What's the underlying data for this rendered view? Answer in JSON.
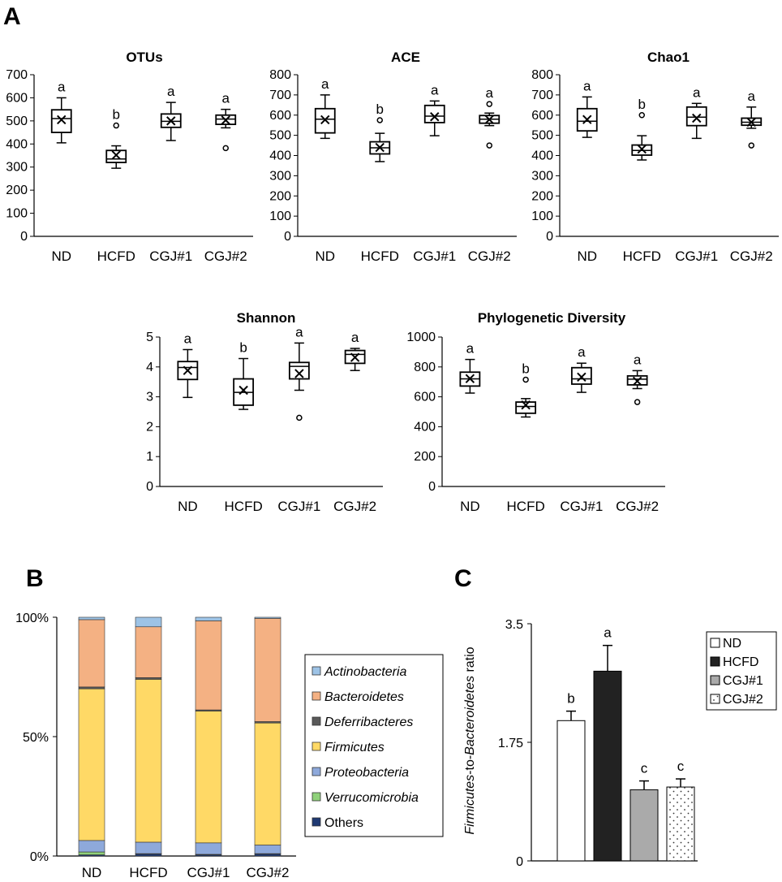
{
  "panel_labels": {
    "A": "A",
    "B": "B",
    "C": "C"
  },
  "chart_data": [
    {
      "id": "otus",
      "type": "box",
      "panel": "A",
      "title": "OTUs",
      "categories": [
        "ND",
        "HCFD",
        "CGJ#1",
        "CGJ#2"
      ],
      "ylim": [
        0,
        700
      ],
      "yticks": [
        0,
        100,
        200,
        300,
        400,
        500,
        600,
        700
      ],
      "boxes": [
        {
          "min": 405,
          "q1": 450,
          "median": 510,
          "q3": 548,
          "max": 600,
          "mean": 505,
          "outliers": [],
          "label": "a"
        },
        {
          "min": 295,
          "q1": 320,
          "median": 335,
          "q3": 372,
          "max": 392,
          "mean": 352,
          "outliers": [
            480
          ],
          "label": "b"
        },
        {
          "min": 415,
          "q1": 472,
          "median": 498,
          "q3": 530,
          "max": 580,
          "mean": 500,
          "outliers": [],
          "label": "a"
        },
        {
          "min": 470,
          "q1": 485,
          "median": 508,
          "q3": 525,
          "max": 550,
          "mean": 503,
          "outliers": [
            382
          ],
          "label": "a"
        }
      ]
    },
    {
      "id": "ace",
      "type": "box",
      "panel": "A",
      "title": "ACE",
      "categories": [
        "ND",
        "HCFD",
        "CGJ#1",
        "CGJ#2"
      ],
      "ylim": [
        0,
        800
      ],
      "yticks": [
        0,
        100,
        200,
        300,
        400,
        500,
        600,
        700,
        800
      ],
      "boxes": [
        {
          "min": 485,
          "q1": 512,
          "median": 580,
          "q3": 632,
          "max": 700,
          "mean": 577,
          "outliers": [],
          "label": "a"
        },
        {
          "min": 370,
          "q1": 408,
          "median": 438,
          "q3": 468,
          "max": 510,
          "mean": 440,
          "outliers": [
            575
          ],
          "label": "b"
        },
        {
          "min": 498,
          "q1": 563,
          "median": 595,
          "q3": 648,
          "max": 670,
          "mean": 592,
          "outliers": [],
          "label": "a"
        },
        {
          "min": 548,
          "q1": 560,
          "median": 580,
          "q3": 598,
          "max": 610,
          "mean": 578,
          "outliers": [
            655,
            450
          ],
          "label": "a"
        }
      ]
    },
    {
      "id": "chao1",
      "type": "box",
      "panel": "A",
      "title": "Chao1",
      "categories": [
        "ND",
        "HCFD",
        "CGJ#1",
        "CGJ#2"
      ],
      "ylim": [
        0,
        800
      ],
      "yticks": [
        0,
        100,
        200,
        300,
        400,
        500,
        600,
        700,
        800
      ],
      "boxes": [
        {
          "min": 490,
          "q1": 522,
          "median": 570,
          "q3": 632,
          "max": 690,
          "mean": 578,
          "outliers": [],
          "label": "a"
        },
        {
          "min": 378,
          "q1": 402,
          "median": 425,
          "q3": 452,
          "max": 498,
          "mean": 432,
          "outliers": [
            600
          ],
          "label": "b"
        },
        {
          "min": 485,
          "q1": 548,
          "median": 590,
          "q3": 640,
          "max": 658,
          "mean": 585,
          "outliers": [],
          "label": "a"
        },
        {
          "min": 535,
          "q1": 550,
          "median": 565,
          "q3": 585,
          "max": 640,
          "mean": 565,
          "outliers": [
            450
          ],
          "label": "a"
        }
      ]
    },
    {
      "id": "shannon",
      "type": "box",
      "panel": "A",
      "title": "Shannon",
      "categories": [
        "ND",
        "HCFD",
        "CGJ#1",
        "CGJ#2"
      ],
      "ylim": [
        0,
        5
      ],
      "yticks": [
        0,
        1,
        2,
        3,
        4,
        5
      ],
      "boxes": [
        {
          "min": 2.98,
          "q1": 3.58,
          "median": 3.98,
          "q3": 4.18,
          "max": 4.58,
          "mean": 3.88,
          "outliers": [],
          "label": "a"
        },
        {
          "min": 2.58,
          "q1": 2.72,
          "median": 3.15,
          "q3": 3.6,
          "max": 4.28,
          "mean": 3.22,
          "outliers": [],
          "label": "b"
        },
        {
          "min": 3.22,
          "q1": 3.6,
          "median": 4.02,
          "q3": 4.15,
          "max": 4.8,
          "mean": 3.78,
          "outliers": [
            2.3
          ],
          "label": "a"
        },
        {
          "min": 3.88,
          "q1": 4.12,
          "median": 4.42,
          "q3": 4.55,
          "max": 4.62,
          "mean": 4.32,
          "outliers": [],
          "label": "a"
        }
      ]
    },
    {
      "id": "pd",
      "type": "box",
      "panel": "A",
      "title": "Phylogenetic Diversity",
      "categories": [
        "ND",
        "HCFD",
        "CGJ#1",
        "CGJ#2"
      ],
      "ylim": [
        0,
        1000
      ],
      "yticks": [
        0,
        200,
        400,
        600,
        800,
        1000
      ],
      "boxes": [
        {
          "min": 625,
          "q1": 672,
          "median": 720,
          "q3": 765,
          "max": 850,
          "mean": 722,
          "outliers": [],
          "label": "a"
        },
        {
          "min": 465,
          "q1": 490,
          "median": 535,
          "q3": 565,
          "max": 588,
          "mean": 545,
          "outliers": [
            715
          ],
          "label": "b"
        },
        {
          "min": 630,
          "q1": 685,
          "median": 720,
          "q3": 795,
          "max": 825,
          "mean": 732,
          "outliers": [],
          "label": "a"
        },
        {
          "min": 655,
          "q1": 680,
          "median": 718,
          "q3": 740,
          "max": 775,
          "mean": 705,
          "outliers": [
            565
          ],
          "label": "a"
        }
      ]
    },
    {
      "id": "phyla",
      "type": "stacked-bar",
      "panel": "B",
      "categories": [
        "ND",
        "HCFD",
        "CGJ#1",
        "CGJ#2"
      ],
      "ylim": [
        0,
        100
      ],
      "yticks": [
        "0%",
        "50%",
        "100%"
      ],
      "legend_position": "right",
      "series": [
        {
          "name": "Others",
          "color": "#1f3a73",
          "values": [
            0.5,
            0.8,
            0.5,
            0.8
          ]
        },
        {
          "name": "Verrucomicrobia",
          "color": "#8fd17a",
          "values": [
            1.2,
            0.2,
            0.2,
            0.2
          ]
        },
        {
          "name": "Proteobacteria",
          "color": "#8ea9db",
          "values": [
            4.8,
            4.8,
            4.8,
            3.6
          ]
        },
        {
          "name": "Firmicutes",
          "color": "#ffd966",
          "values": [
            63.5,
            68.2,
            55.2,
            51.1
          ]
        },
        {
          "name": "Deferribacteres",
          "color": "#595959",
          "values": [
            0.8,
            0.7,
            0.5,
            0.6
          ]
        },
        {
          "name": "Bacteroidetes",
          "color": "#f4b183",
          "values": [
            28.2,
            21.3,
            37.3,
            43.2
          ]
        },
        {
          "name": "Actinobacteria",
          "color": "#9dc3e6",
          "values": [
            1.0,
            4.0,
            1.5,
            0.5
          ]
        }
      ],
      "legend_order": [
        "Actinobacteria",
        "Bacteroidetes",
        "Deferribacteres",
        "Firmicutes",
        "Proteobacteria",
        "Verrucomicrobia",
        "Others"
      ]
    },
    {
      "id": "ratio",
      "type": "bar",
      "panel": "C",
      "categories": [
        "ND",
        "HCFD",
        "CGJ#1",
        "CGJ#2"
      ],
      "values": [
        2.07,
        2.8,
        1.05,
        1.09
      ],
      "errors": [
        0.14,
        0.38,
        0.13,
        0.12
      ],
      "labels": [
        "b",
        "a",
        "c",
        "c"
      ],
      "fills": [
        "#ffffff",
        "#222222",
        "#aaaaaa",
        "dotted"
      ],
      "ylim": [
        0,
        3.5
      ],
      "yticks": [
        "0",
        "1.75",
        "3.5"
      ],
      "ylabel_parts": [
        "Firmicutes",
        "-to-",
        "Bacteroidetes",
        " ratio"
      ],
      "legend": [
        "ND",
        "HCFD",
        "CGJ#1",
        "CGJ#2"
      ],
      "legend_position": "top-right"
    }
  ]
}
